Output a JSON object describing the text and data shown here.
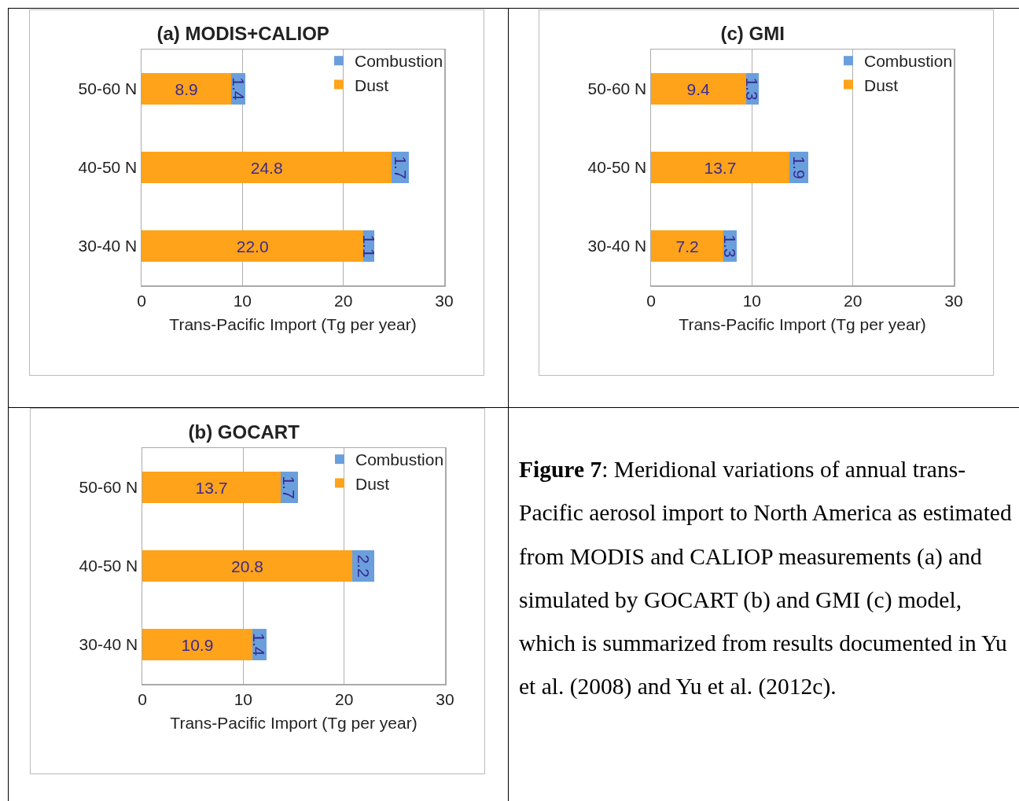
{
  "chart_data": [
    {
      "type": "bar",
      "orientation": "horizontal",
      "stacked": true,
      "title": "(a) MODIS+CALIOP",
      "xlabel": "Trans-Pacific Import (Tg per year)",
      "categories": [
        "50-60 N",
        "40-50 N",
        "30-40 N"
      ],
      "xlim": [
        0,
        30
      ],
      "xticks": [
        0,
        10,
        20,
        30
      ],
      "grid": "x",
      "legend": "top right",
      "series": [
        {
          "name": "Dust",
          "color": "#ffa31a",
          "values": [
            8.9,
            24.8,
            22.0
          ],
          "value_labels": [
            "8.9",
            "24.8",
            "22.0"
          ]
        },
        {
          "name": "Combustion",
          "color": "#6a9fdc",
          "values": [
            1.4,
            1.7,
            1.1
          ],
          "value_labels": [
            "1.4",
            "1.7",
            "1.1"
          ]
        }
      ]
    },
    {
      "type": "bar",
      "orientation": "horizontal",
      "stacked": true,
      "title": "(c) GMI",
      "xlabel": "Trans-Pacific Import (Tg per year)",
      "categories": [
        "50-60 N",
        "40-50 N",
        "30-40 N"
      ],
      "xlim": [
        0,
        30
      ],
      "xticks": [
        0,
        10,
        20,
        30
      ],
      "grid": "x",
      "legend": "top right",
      "series": [
        {
          "name": "Dust",
          "color": "#ffa31a",
          "values": [
            9.4,
            13.7,
            7.2
          ],
          "value_labels": [
            "9.4",
            "13.7",
            "7.2"
          ]
        },
        {
          "name": "Combustion",
          "color": "#6a9fdc",
          "values": [
            1.3,
            1.9,
            1.3
          ],
          "value_labels": [
            "1.3",
            "1.9",
            "1.3"
          ]
        }
      ]
    },
    {
      "type": "bar",
      "orientation": "horizontal",
      "stacked": true,
      "title": "(b) GOCART",
      "xlabel": "Trans-Pacific Import (Tg per year)",
      "categories": [
        "50-60 N",
        "40-50 N",
        "30-40 N"
      ],
      "xlim": [
        0,
        30
      ],
      "xticks": [
        0,
        10,
        20,
        30
      ],
      "grid": "x",
      "legend": "top right",
      "series": [
        {
          "name": "Dust",
          "color": "#ffa31a",
          "values": [
            13.7,
            20.8,
            10.9
          ],
          "value_labels": [
            "13.7",
            "20.8",
            "10.9"
          ]
        },
        {
          "name": "Combustion",
          "color": "#6a9fdc",
          "values": [
            1.7,
            2.2,
            1.4
          ],
          "value_labels": [
            "1.7",
            "2.2",
            "1.4"
          ]
        }
      ]
    },
    {
      "type": "other",
      "annotations": [
        "Figure 7",
        ": Meridional variations of annual trans-Pacific aerosol import to North America as estimated from MODIS and CALIOP measurements (a) and simulated by GOCART (b) and GMI (c) model, which is summarized from results documented in Yu et al. (2008) and Yu et al. (2012c)."
      ]
    }
  ]
}
